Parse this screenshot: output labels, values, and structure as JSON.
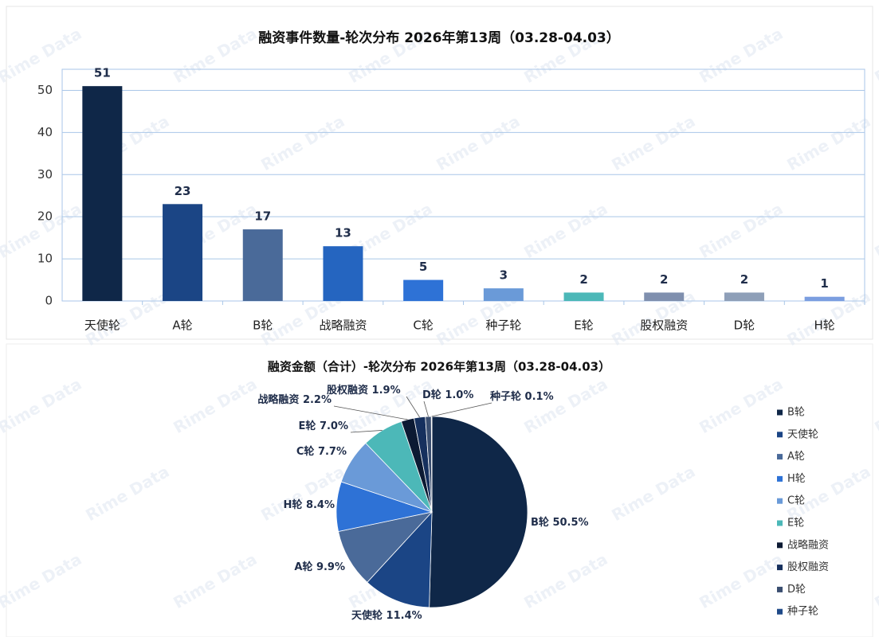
{
  "watermark": "Rime Data",
  "chart_data": [
    {
      "type": "bar",
      "title": "融资事件数量-轮次分布 2026年第13周（03.28-04.03）",
      "categories": [
        "天使轮",
        "A轮",
        "B轮",
        "战略融资",
        "C轮",
        "种子轮",
        "E轮",
        "股权融资",
        "D轮",
        "H轮"
      ],
      "values": [
        51,
        23,
        17,
        13,
        5,
        3,
        2,
        2,
        2,
        1
      ],
      "colors": [
        "#0f2748",
        "#1b4585",
        "#4a6a99",
        "#2565c0",
        "#2e72d6",
        "#6a9ad8",
        "#4cb8b8",
        "#7f8fae",
        "#8e9fb8",
        "#7b9ee0"
      ],
      "ylim": [
        0,
        55
      ],
      "yticks": [
        0,
        10,
        20,
        30,
        40,
        50
      ],
      "grid": true
    },
    {
      "type": "pie",
      "title": "融资金额（合计）-轮次分布 2026年第13周（03.28-04.03）",
      "categories": [
        "B轮",
        "天使轮",
        "A轮",
        "H轮",
        "C轮",
        "E轮",
        "战略融资",
        "股权融资",
        "D轮",
        "种子轮"
      ],
      "values": [
        50.5,
        11.4,
        9.9,
        8.4,
        7.7,
        7.0,
        2.2,
        1.9,
        1.0,
        0.1
      ],
      "value_labels": [
        "50.5%",
        "11.4%",
        "9.9%",
        "8.4%",
        "7.7%",
        "7.0%",
        "2.2%",
        "1.9%",
        "1.0%",
        "0.1%"
      ],
      "colors": [
        "#0f2748",
        "#1b4585",
        "#4a6a99",
        "#2e72d6",
        "#6a9ad8",
        "#4cb8b8",
        "#0c1a33",
        "#16305e",
        "#3a4e70",
        "#1f4a88"
      ],
      "legend": "right"
    }
  ]
}
